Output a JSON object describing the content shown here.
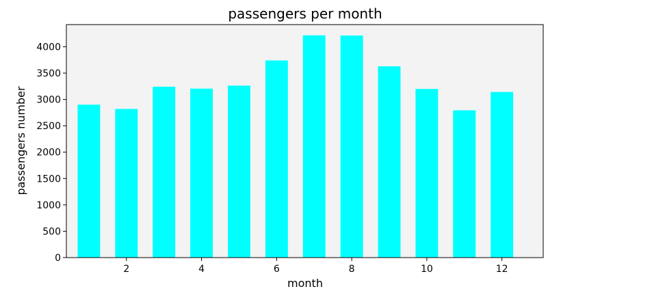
{
  "chart_data": {
    "type": "bar",
    "title": "passengers per month",
    "xlabel": "month",
    "ylabel": "passengers number",
    "categories": [
      1,
      2,
      3,
      4,
      5,
      6,
      7,
      8,
      9,
      10,
      11,
      12
    ],
    "values": [
      2901,
      2820,
      3242,
      3205,
      3262,
      3740,
      4216,
      4213,
      3629,
      3199,
      2794,
      3142
    ],
    "xlim": [
      0.4,
      13.1
    ],
    "ylim": [
      0,
      4420
    ],
    "xticks": [
      2,
      4,
      6,
      8,
      10,
      12
    ],
    "yticks": [
      0,
      500,
      1000,
      1500,
      2000,
      2500,
      3000,
      3500,
      4000
    ],
    "grid": false,
    "colors": {
      "bar": "#00ffff",
      "plot_background": "#f3f3f3",
      "axes": "#000000"
    }
  }
}
